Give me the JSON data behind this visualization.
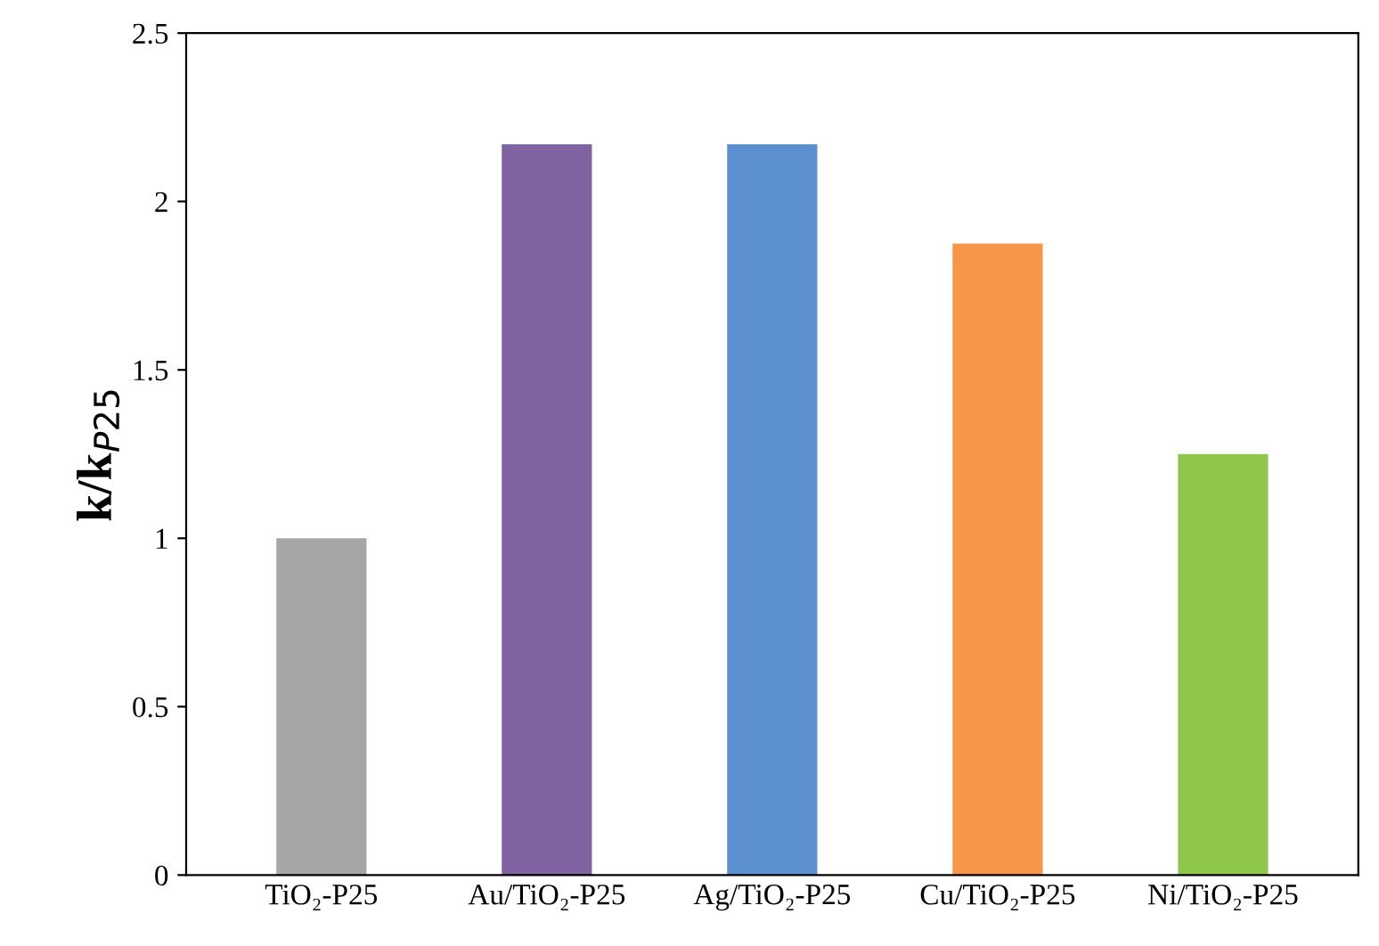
{
  "chart_data": {
    "type": "bar",
    "ylabel": "k/k$_{P25}$",
    "categories": [
      "TiO₂-P25",
      "Au/TiO₂-P25",
      "Ag/TiO₂-P25",
      "Cu/TiO₂-P25",
      "Ni/TiO₂-P25"
    ],
    "values": [
      1.0,
      2.17,
      2.17,
      1.875,
      1.25
    ],
    "colors": [
      "#a6a6a6",
      "#8064a2",
      "#5b8fd0",
      "#f79646",
      "#8fc74a"
    ],
    "ylim": [
      0,
      2.5
    ],
    "yticks": [
      0,
      {
        "value": 0.5,
        "label": "0.5"
      },
      1,
      {
        "value": 1.5,
        "label": "1.5"
      },
      2,
      {
        "value": 2.5,
        "label": "2.5"
      }
    ],
    "grid": false,
    "legend": false
  }
}
